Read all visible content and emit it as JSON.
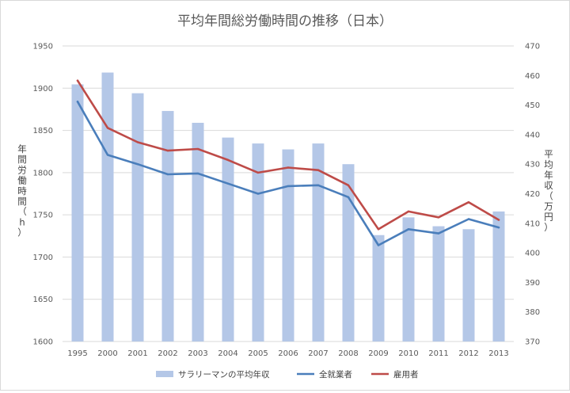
{
  "chart_data": {
    "type": "bar+line",
    "title": "平均年間総労働時間の推移（日本）",
    "categories": [
      "1995",
      "2000",
      "2001",
      "2002",
      "2003",
      "2004",
      "2005",
      "2006",
      "2007",
      "2008",
      "2009",
      "2010",
      "2011",
      "2012",
      "2013"
    ],
    "y_left": {
      "label": "年間労働時間（h）",
      "label_chars": [
        "年",
        "間",
        "労",
        "働",
        "時",
        "間",
        "（",
        "h",
        "）"
      ],
      "ylim": [
        1600,
        1950
      ],
      "ticks": [
        1600,
        1650,
        1700,
        1750,
        1800,
        1850,
        1900,
        1950
      ]
    },
    "y_right": {
      "label": "平均年収（万円）",
      "label_chars": [
        "平",
        "均",
        "年",
        "収",
        "（",
        "万",
        "円",
        "）"
      ],
      "ylim": [
        370,
        470
      ],
      "ticks": [
        370,
        380,
        390,
        400,
        410,
        420,
        430,
        440,
        450,
        460,
        470
      ]
    },
    "bars": {
      "name": "サラリーマンの平均年収",
      "axis": "right",
      "color": "#b4c7e7",
      "values": [
        457,
        461,
        454,
        448,
        444,
        439,
        437,
        435,
        437,
        430,
        406,
        412,
        409,
        408,
        414
      ]
    },
    "series": [
      {
        "name": "全就業者",
        "axis": "left",
        "color": "#4a7ebb",
        "values": [
          1884,
          1821,
          1810,
          1798,
          1799,
          1787,
          1775,
          1784,
          1785,
          1771,
          1714,
          1733,
          1728,
          1745,
          1735
        ]
      },
      {
        "name": "雇用者",
        "axis": "left",
        "color": "#be4b48",
        "values": [
          1909,
          1853,
          1836,
          1826,
          1828,
          1815,
          1800,
          1806,
          1803,
          1785,
          1733,
          1754,
          1747,
          1765,
          1744
        ]
      }
    ],
    "legend": [
      "サラリーマンの平均年収",
      "全就業者",
      "雇用者"
    ],
    "legend_position": "bottom",
    "grid": true
  }
}
